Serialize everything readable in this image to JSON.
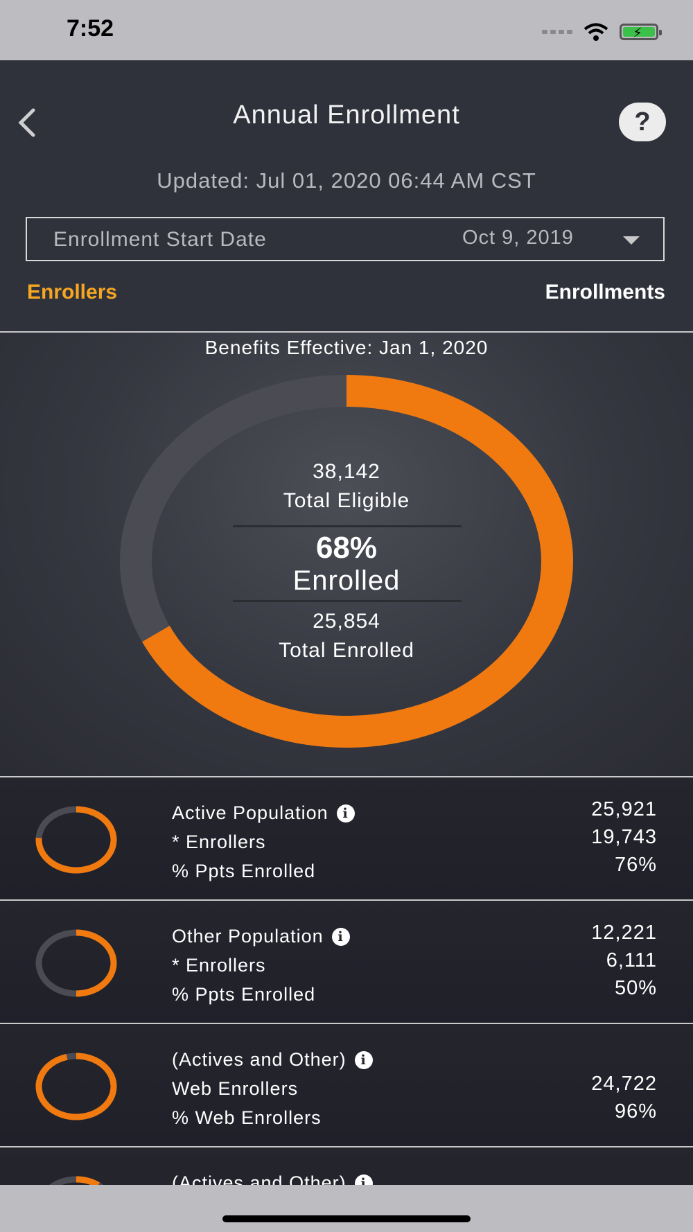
{
  "status_bar": {
    "time": "7:52"
  },
  "header": {
    "title": "Annual Enrollment",
    "help_label": "?",
    "updated": "Updated: Jul 01, 2020 06:44 AM CST",
    "date_select": {
      "label": "Enrollment Start Date",
      "value": "Oct 9, 2019"
    },
    "tabs": {
      "enrollers": "Enrollers",
      "enrollments": "Enrollments"
    }
  },
  "summary": {
    "benefits_effective": "Benefits Effective: Jan 1, 2020",
    "total_eligible": "38,142",
    "total_eligible_label": "Total Eligible",
    "percent": "68%",
    "percent_label": "Enrolled",
    "total_enrolled": "25,854",
    "total_enrolled_label": "Total Enrolled",
    "enrolled_fraction": 0.68
  },
  "colors": {
    "accent": "#f07a10",
    "track": "#4a4b53",
    "tab_active": "#f5a623"
  },
  "rows": [
    {
      "title": "Active Population",
      "line2": "* Enrollers",
      "line3": "% Ppts Enrolled",
      "value1": "25,921",
      "value2": "19,743",
      "value3": "76%",
      "fraction": 0.76
    },
    {
      "title": "Other Population",
      "line2": "* Enrollers",
      "line3": "% Ppts Enrolled",
      "value1": "12,221",
      "value2": "6,111",
      "value3": "50%",
      "fraction": 0.5
    },
    {
      "title": "(Actives and Other)",
      "line2": "Web Enrollers",
      "line3": "% Web Enrollers",
      "value1": "",
      "value2": "24,722",
      "value3": "96%",
      "fraction": 0.96
    },
    {
      "title": "(Actives and Other)",
      "line2": "",
      "line3": "",
      "value1": "",
      "value2": "",
      "value3": "",
      "fraction": 0.1
    }
  ]
}
